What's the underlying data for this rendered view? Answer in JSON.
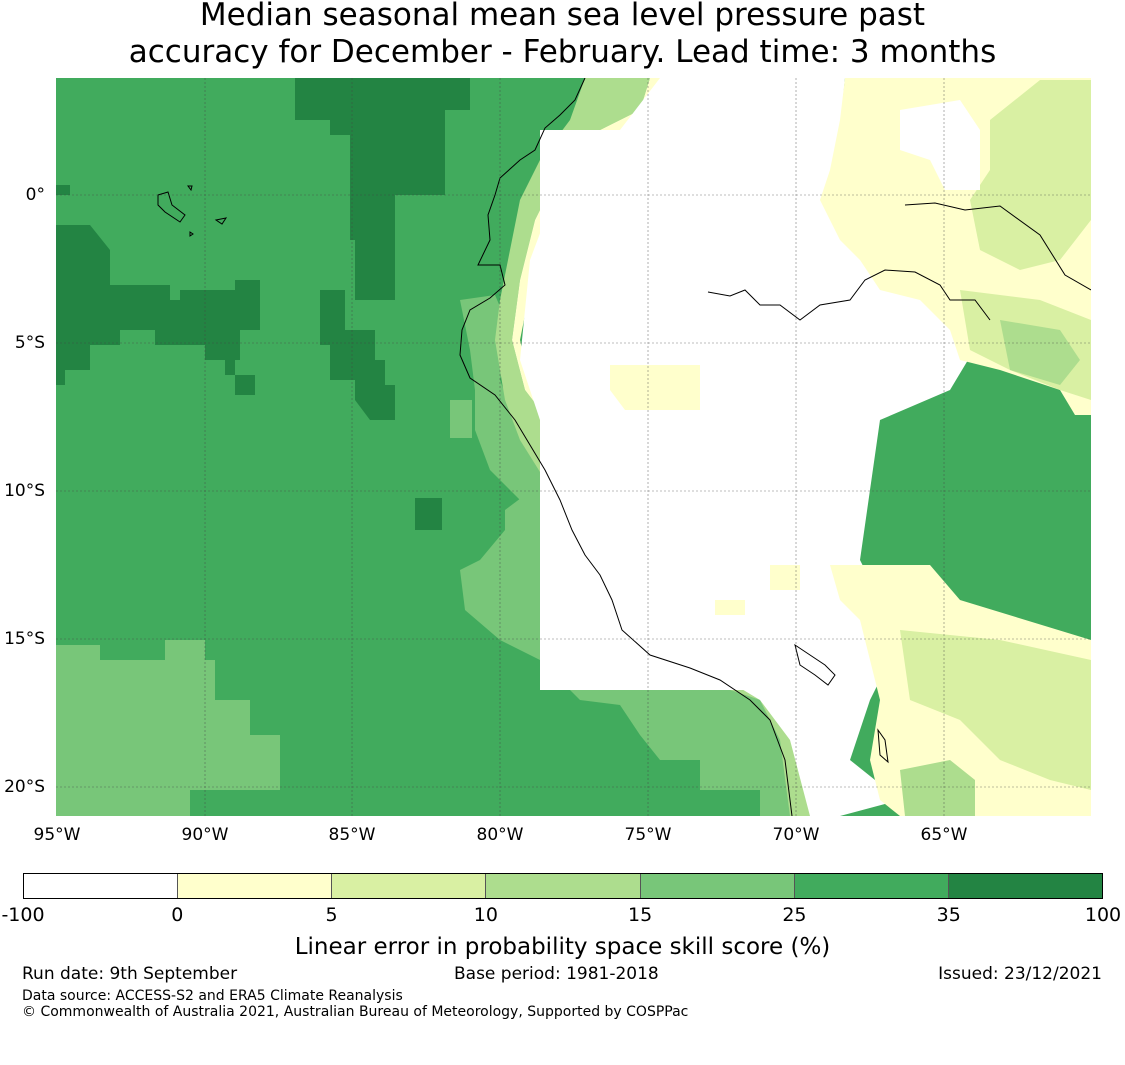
{
  "title": {
    "line1": "Median seasonal mean sea level pressure past",
    "line2": "accuracy for December - February. Lead time: 3 months"
  },
  "map": {
    "lat_labels": [
      "0°",
      "5°S",
      "10°S",
      "15°S",
      "20°S"
    ],
    "lon_labels": [
      "95°W",
      "90°W",
      "85°W",
      "80°W",
      "75°W",
      "70°W",
      "65°W"
    ],
    "colors": {
      "white": "#ffffff",
      "pale_yellow": "#ffffcc",
      "light_green": "#d9f0a3",
      "mid_light_green": "#addd8e",
      "medium_green": "#78c679",
      "green": "#41ab5d",
      "dark_green": "#238443"
    }
  },
  "colorbar": {
    "label": "Linear error in probability space skill score (%)",
    "ticks": [
      "-100",
      "0",
      "5",
      "10",
      "15",
      "25",
      "35",
      "100"
    ],
    "colors": [
      "#ffffff",
      "#ffffcc",
      "#d9f0a3",
      "#addd8e",
      "#78c679",
      "#41ab5d",
      "#238443"
    ]
  },
  "footer": {
    "run_date": "Run date: 9th September",
    "base_period": "Base period: 1981-2018",
    "issued": "Issued: 23/12/2021",
    "data_source": "Data source: ACCESS-S2 and ERA5 Climate Reanalysis",
    "copyright": "© Commonwealth of Australia 2021, Australian Bureau of Meteorology, Supported by COSPPac"
  }
}
